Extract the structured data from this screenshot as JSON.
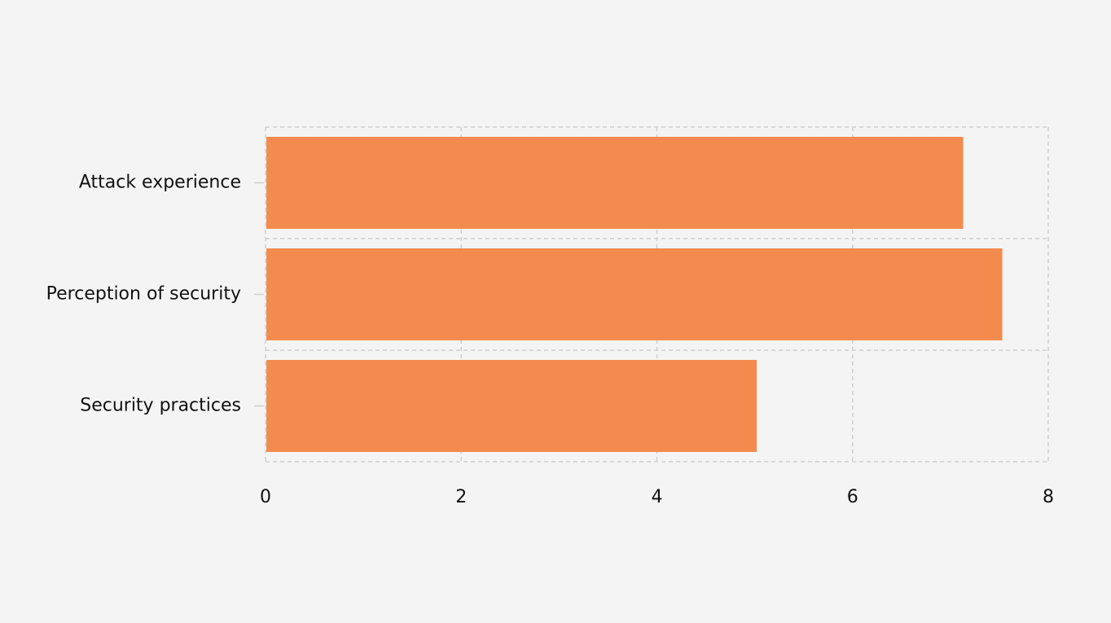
{
  "chart_data": {
    "type": "bar",
    "orientation": "horizontal",
    "title": "",
    "xlabel": "",
    "ylabel": "",
    "categories": [
      "Attack experience",
      "Perception of security",
      "Security practices"
    ],
    "values": [
      7.13,
      7.53,
      5.02
    ],
    "xlim": [
      0,
      8
    ],
    "xticks": [
      "0",
      "2",
      "4",
      "6",
      "8"
    ],
    "grid": true,
    "legend": "none",
    "colors": {
      "bar": "#f48b4e",
      "grid": "#cfcfcf",
      "background": "#f4f4f4"
    }
  }
}
